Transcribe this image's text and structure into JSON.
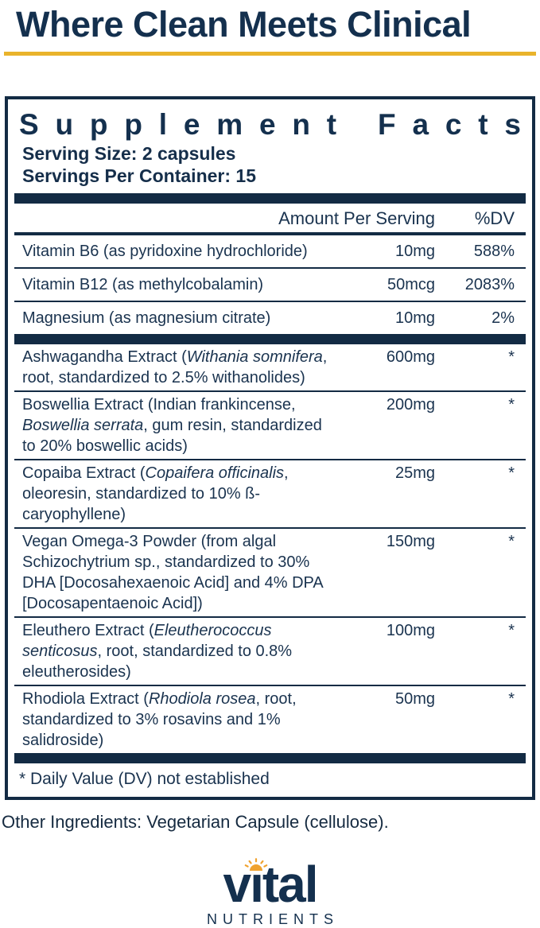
{
  "header": {
    "title": "Where Clean Meets Clinical"
  },
  "panel": {
    "title": "Supplement Facts",
    "serving_size": "Serving Size: 2 capsules",
    "servings_per_container": "Servings Per Container: 15",
    "columns": {
      "amount": "Amount Per Serving",
      "dv": "%DV"
    },
    "rows": [
      {
        "name": [
          {
            "t": "Vitamin B6 (as pyridoxine hydrochloride)"
          }
        ],
        "amount": "10mg",
        "dv": "588%"
      },
      {
        "name": [
          {
            "t": "Vitamin B12 (as methylcobalamin)"
          }
        ],
        "amount": "50mcg",
        "dv": "2083%"
      },
      {
        "name": [
          {
            "t": "Magnesium (as magnesium citrate)"
          }
        ],
        "amount": "10mg",
        "dv": "2%",
        "bar_after": true
      },
      {
        "name": [
          {
            "t": "Ashwagandha Extract ("
          },
          {
            "t": "Withania somnifera",
            "i": true
          },
          {
            "t": ", root, standardized to 2.5% withanolides)"
          }
        ],
        "amount": "600mg",
        "dv": "*",
        "multi": true
      },
      {
        "name": [
          {
            "t": "Boswellia Extract (Indian frankincense, "
          },
          {
            "t": "Boswellia serrata",
            "i": true
          },
          {
            "t": ", gum resin, standardized to 20% boswellic acids)"
          }
        ],
        "amount": "200mg",
        "dv": "*",
        "multi": true
      },
      {
        "name": [
          {
            "t": "Copaiba Extract ("
          },
          {
            "t": "Copaifera officinalis",
            "i": true
          },
          {
            "t": ", oleoresin, standardized to 10% ß-caryophyllene)"
          }
        ],
        "amount": "25mg",
        "dv": "*",
        "multi": true
      },
      {
        "name": [
          {
            "t": "Vegan Omega-3 Powder (from algal Schizochytrium sp., standardized to 30% DHA [Docosahexaenoic Acid] and 4% DPA [Docosapentaenoic Acid])"
          }
        ],
        "amount": "150mg",
        "dv": "*",
        "multi": true
      },
      {
        "name": [
          {
            "t": "Eleuthero Extract ("
          },
          {
            "t": "Eleutherococcus senticosus",
            "i": true
          },
          {
            "t": ", root, standardized to 0.8% eleutherosides)"
          }
        ],
        "amount": "100mg",
        "dv": "*",
        "multi": true
      },
      {
        "name": [
          {
            "t": "Rhodiola Extract ("
          },
          {
            "t": "Rhodiola rosea",
            "i": true
          },
          {
            "t": ", root, standardized to 3% rosavins and 1% salidroside)"
          }
        ],
        "amount": "50mg",
        "dv": "*",
        "multi": true
      }
    ],
    "footnote": "* Daily Value (DV) not established"
  },
  "other_ingredients": "Other Ingredients: Vegetarian Capsule (cellulose).",
  "brand": {
    "word_start": "v",
    "word_i": "ı",
    "word_end": "tal",
    "subtext": "NUTRIENTS",
    "sun_icon": "sun-rays-icon"
  },
  "colors": {
    "navy_text": "#1a334f",
    "navy_dark": "#132b44",
    "gold": "#e9b32b",
    "sun_gold": "#f0a22e"
  }
}
